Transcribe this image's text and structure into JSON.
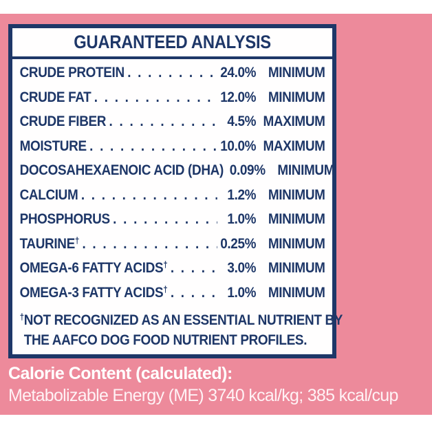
{
  "label_panel": {
    "title": "GUARANTEED ANALYSIS",
    "dagger_symbol": "†",
    "rows": [
      {
        "label": "CRUDE PROTEIN",
        "dagger": false,
        "value": "24.0%",
        "qualifier": "MINIMUM"
      },
      {
        "label": "CRUDE FAT",
        "dagger": false,
        "value": "12.0%",
        "qualifier": "MINIMUM"
      },
      {
        "label": "CRUDE FIBER",
        "dagger": false,
        "value": "4.5%",
        "qualifier": "MAXIMUM"
      },
      {
        "label": "MOISTURE",
        "dagger": false,
        "value": "10.0%",
        "qualifier": "MAXIMUM"
      },
      {
        "label": "DOCOSAHEXAENOIC ACID (DHA)",
        "dagger": false,
        "value": "0.09%",
        "qualifier": "MINIMUM"
      },
      {
        "label": "CALCIUM",
        "dagger": false,
        "value": "1.2%",
        "qualifier": "MINIMUM"
      },
      {
        "label": "PHOSPHORUS",
        "dagger": false,
        "value": "1.0%",
        "qualifier": "MINIMUM"
      },
      {
        "label": "TAURINE",
        "dagger": true,
        "value": "0.25%",
        "qualifier": "MINIMUM"
      },
      {
        "label": "OMEGA-6 FATTY ACIDS",
        "dagger": true,
        "value": "3.0%",
        "qualifier": "MINIMUM"
      },
      {
        "label": "OMEGA-3 FATTY ACIDS",
        "dagger": true,
        "value": "1.0%",
        "qualifier": "MINIMUM"
      }
    ],
    "footnote": {
      "line1": "NOT RECOGNIZED AS AN ESSENTIAL NUTRIENT BY",
      "line2": "THE AAFCO DOG FOOD NUTRIENT PROFILES."
    }
  },
  "calorie_content": {
    "heading": "Calorie Content (calculated):",
    "detail": "Metabolizable Energy (ME) 3740 kcal/kg; 385 kcal/cup"
  },
  "colors": {
    "background_pink": "#ed8a9b",
    "navy_text": "#1e3768",
    "panel_background": "#ffffff",
    "calorie_text": "#ffffff"
  }
}
